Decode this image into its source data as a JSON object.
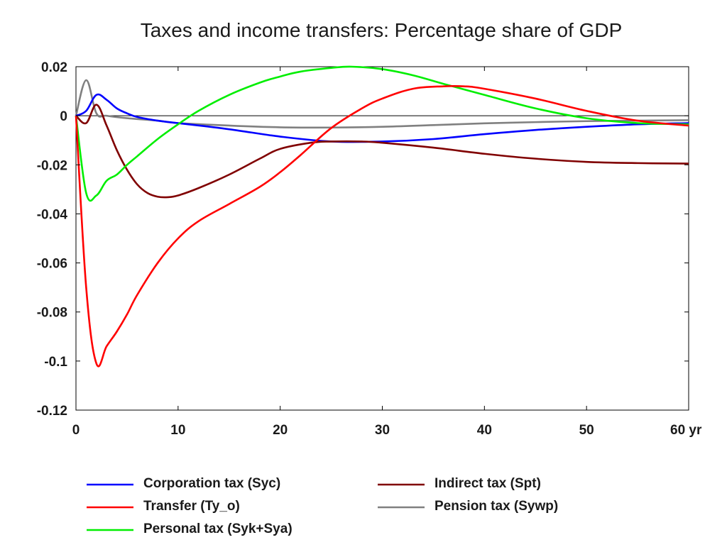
{
  "chart_data": {
    "type": "line",
    "title": "Taxes and income transfers: Percentage share of GDP",
    "xlabel": "",
    "ylabel": "",
    "xlim": [
      0,
      60
    ],
    "ylim": [
      -0.12,
      0.02
    ],
    "x_ticks": [
      0,
      10,
      20,
      30,
      40,
      50,
      60
    ],
    "x_tick_labels": [
      "0",
      "10",
      "20",
      "30",
      "40",
      "50",
      "60 yr"
    ],
    "y_ticks": [
      0.02,
      0,
      -0.02,
      -0.04,
      -0.06,
      -0.08,
      -0.1,
      -0.12
    ],
    "y_tick_labels": [
      "0.02",
      "0",
      "-0.02",
      "-0.04",
      "-0.06",
      "-0.08",
      "-0.1",
      "-0.12"
    ],
    "zero_line": true,
    "grid": false,
    "legend_position": "bottom",
    "series": [
      {
        "name": "Corporation tax (Syc)",
        "color": "#0000ff",
        "x": [
          0,
          1,
          2,
          3,
          4,
          5,
          6,
          8,
          10,
          15,
          20,
          25,
          30,
          35,
          40,
          45,
          50,
          55,
          60
        ],
        "y": [
          0,
          0.002,
          0.0085,
          0.0065,
          0.003,
          0.001,
          -0.0005,
          -0.002,
          -0.003,
          -0.0055,
          -0.0085,
          -0.0105,
          -0.0105,
          -0.0095,
          -0.0075,
          -0.0058,
          -0.0045,
          -0.0035,
          -0.003
        ]
      },
      {
        "name": "Transfer (Ty_o)",
        "color": "#ff0000",
        "x": [
          0,
          1,
          2,
          3,
          4,
          5,
          6,
          8,
          10,
          12,
          15,
          18,
          20,
          22,
          25,
          28,
          30,
          33,
          36,
          38,
          40,
          45,
          50,
          55,
          60
        ],
        "y": [
          0,
          -0.07,
          -0.101,
          -0.094,
          -0.088,
          -0.081,
          -0.073,
          -0.06,
          -0.05,
          -0.043,
          -0.036,
          -0.029,
          -0.023,
          -0.016,
          -0.005,
          0.003,
          0.007,
          0.011,
          0.012,
          0.012,
          0.011,
          0.007,
          0.002,
          -0.002,
          -0.004
        ]
      },
      {
        "name": "Personal tax (Syk+Sya)",
        "color": "#00ee00",
        "x": [
          0,
          1,
          2,
          3,
          4,
          5,
          6,
          8,
          10,
          12,
          15,
          18,
          20,
          22,
          25,
          27,
          30,
          33,
          36,
          40,
          45,
          50,
          55,
          60
        ],
        "y": [
          0,
          -0.0315,
          -0.0325,
          -0.0265,
          -0.024,
          -0.02,
          -0.0165,
          -0.0095,
          -0.0035,
          0.002,
          0.0085,
          0.0135,
          0.016,
          0.018,
          0.0195,
          0.02,
          0.019,
          0.0165,
          0.013,
          0.0085,
          0.003,
          -0.001,
          -0.003,
          -0.0035
        ]
      },
      {
        "name": "Indirect tax (Spt)",
        "color": "#800000",
        "x": [
          0,
          1,
          2,
          3,
          4,
          5,
          6,
          7,
          8,
          9,
          10,
          12,
          15,
          18,
          20,
          23,
          25,
          28,
          30,
          35,
          40,
          45,
          50,
          55,
          60
        ],
        "y": [
          0,
          -0.003,
          0.0045,
          -0.004,
          -0.014,
          -0.022,
          -0.028,
          -0.0315,
          -0.033,
          -0.0332,
          -0.0325,
          -0.0295,
          -0.024,
          -0.0175,
          -0.0135,
          -0.011,
          -0.0105,
          -0.0105,
          -0.011,
          -0.013,
          -0.0155,
          -0.0175,
          -0.0188,
          -0.0193,
          -0.0195
        ]
      },
      {
        "name": "Pension tax (Sywp)",
        "color": "#808080",
        "x": [
          0,
          1,
          2,
          3,
          5,
          8,
          10,
          15,
          20,
          25,
          30,
          35,
          40,
          45,
          50,
          55,
          60
        ],
        "y": [
          0,
          0.0145,
          0.001,
          0.0,
          -0.001,
          -0.002,
          -0.003,
          -0.004,
          -0.0047,
          -0.0048,
          -0.0045,
          -0.0038,
          -0.0031,
          -0.0026,
          -0.0022,
          -0.002,
          -0.0018
        ]
      }
    ]
  }
}
